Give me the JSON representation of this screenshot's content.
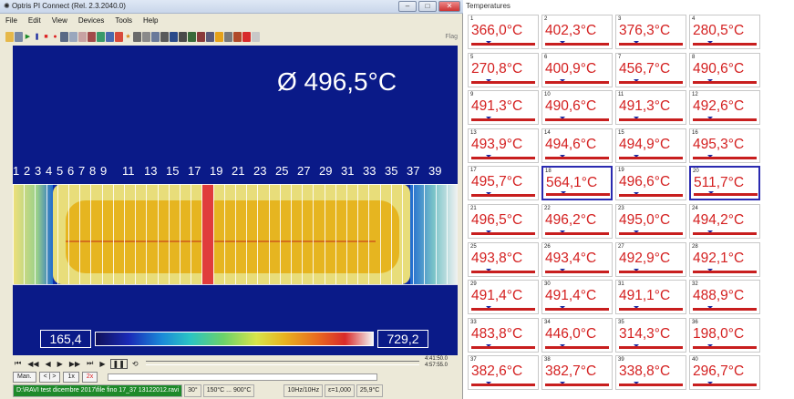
{
  "window": {
    "title": "Optris PI Connect (Rel. 2.3.2040.0)"
  },
  "menu": [
    "File",
    "Edit",
    "View",
    "Devices",
    "Tools",
    "Help"
  ],
  "toolbar": {
    "flag_label": "Flag"
  },
  "thermal": {
    "average": "Ø  496,5°C",
    "column_numbers": [
      "1",
      "2",
      "3",
      "4",
      "5",
      "6",
      "7",
      "8",
      "9",
      "11",
      "13",
      "15",
      "17",
      "19",
      "21",
      "23",
      "25",
      "27",
      "29",
      "31",
      "33",
      "35",
      "37",
      "39"
    ],
    "scale_min": "165,4",
    "scale_max": "729,2"
  },
  "playback": {
    "time_top": "4:41:50.0",
    "time_bottom": "4:57:55.0"
  },
  "controls": {
    "man": "Man.",
    "step": "< | >",
    "one_x": "1x",
    "two_x": "2x"
  },
  "statusbar": {
    "file": "D:\\RAVI test dicembre 2017\\file fino 17_37 13122012.ravi",
    "fov": "30°",
    "range": "150°C ... 900°C",
    "rate": "10Hz/10Hz",
    "emissivity": "ε=1,000",
    "ambient": "25,9°C"
  },
  "panel": {
    "title": "Temperatures",
    "cells": [
      {
        "idx": "1",
        "val": "366,0°C"
      },
      {
        "idx": "2",
        "val": "402,3°C"
      },
      {
        "idx": "3",
        "val": "376,3°C"
      },
      {
        "idx": "4",
        "val": "280,5°C"
      },
      {
        "idx": "5",
        "val": "270,8°C"
      },
      {
        "idx": "6",
        "val": "400,9°C"
      },
      {
        "idx": "7",
        "val": "456,7°C"
      },
      {
        "idx": "8",
        "val": "490,6°C"
      },
      {
        "idx": "9",
        "val": "491,3°C"
      },
      {
        "idx": "10",
        "val": "490,6°C"
      },
      {
        "idx": "11",
        "val": "491,3°C"
      },
      {
        "idx": "12",
        "val": "492,6°C"
      },
      {
        "idx": "13",
        "val": "493,9°C"
      },
      {
        "idx": "14",
        "val": "494,6°C"
      },
      {
        "idx": "15",
        "val": "494,9°C"
      },
      {
        "idx": "16",
        "val": "495,3°C"
      },
      {
        "idx": "17",
        "val": "495,7°C"
      },
      {
        "idx": "18",
        "val": "564,1°C",
        "selected": true
      },
      {
        "idx": "19",
        "val": "496,6°C"
      },
      {
        "idx": "20",
        "val": "511,7°C",
        "selected": true
      },
      {
        "idx": "21",
        "val": "496,5°C"
      },
      {
        "idx": "22",
        "val": "496,2°C"
      },
      {
        "idx": "23",
        "val": "495,0°C"
      },
      {
        "idx": "24",
        "val": "494,2°C"
      },
      {
        "idx": "25",
        "val": "493,8°C"
      },
      {
        "idx": "26",
        "val": "493,4°C"
      },
      {
        "idx": "27",
        "val": "492,9°C"
      },
      {
        "idx": "28",
        "val": "492,1°C"
      },
      {
        "idx": "29",
        "val": "491,4°C"
      },
      {
        "idx": "30",
        "val": "491,4°C"
      },
      {
        "idx": "31",
        "val": "491,1°C"
      },
      {
        "idx": "32",
        "val": "488,9°C"
      },
      {
        "idx": "33",
        "val": "483,8°C"
      },
      {
        "idx": "34",
        "val": "446,0°C"
      },
      {
        "idx": "35",
        "val": "314,3°C"
      },
      {
        "idx": "36",
        "val": "198,0°C"
      },
      {
        "idx": "37",
        "val": "382,6°C"
      },
      {
        "idx": "38",
        "val": "382,7°C"
      },
      {
        "idx": "39",
        "val": "338,8°C"
      },
      {
        "idx": "40",
        "val": "296,7°C"
      }
    ]
  },
  "colors": {
    "value_red": "#d42020",
    "selection_blue": "#2a2ab0",
    "thermal_background": "#0a1a88"
  }
}
